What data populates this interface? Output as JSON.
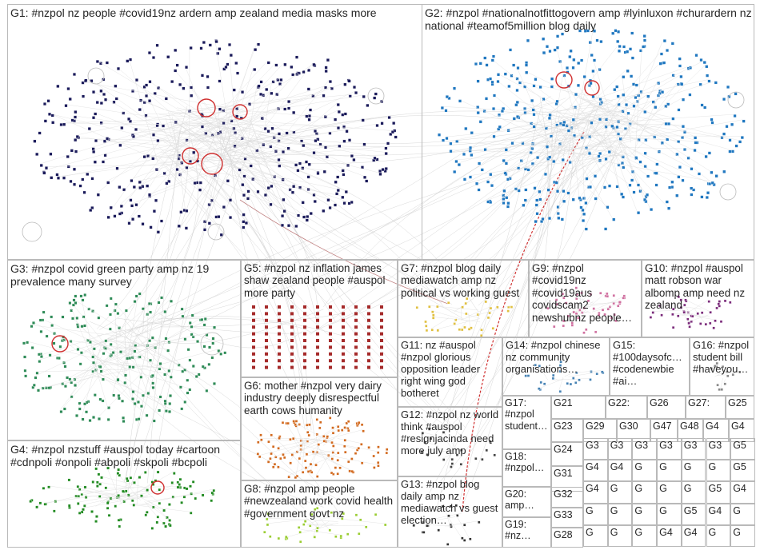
{
  "groups": [
    {
      "id": "G1",
      "label": "G1: #nzpol nz people #covid19nz ardern amp zealand media masks more",
      "color": "#1a1a5a"
    },
    {
      "id": "G2",
      "label": "G2: #nzpol #nationalnotfittogovern amp #lyinluxon #churardern nz national #teamof5million blog daily",
      "color": "#1f77c0"
    },
    {
      "id": "G3",
      "label": "G3: #nzpol covid green party amp nz 19 prevalence many survey",
      "color": "#2e8b57"
    },
    {
      "id": "G4",
      "label": "G4: #nzpol nzstuff #auspol today #cartoon #cdnpoli #onpoli #abpoli #skpoli #bcpoli",
      "color": "#228b22"
    },
    {
      "id": "G5",
      "label": "G5: #nzpol nz inflation james shaw zealand people #auspol more party",
      "color": "#a52a2a"
    },
    {
      "id": "G6",
      "label": "G6: mother #nzpol very dairy industry deeply disrespectful earth cows humanity",
      "color": "#d2691e"
    },
    {
      "id": "G7",
      "label": "G7: #nzpol blog daily mediawatch amp nz political vs working guest",
      "color": "#e0c040"
    },
    {
      "id": "G8",
      "label": "G8: #nzpol amp people #newzealand work covid health #government govt nz",
      "color": "#9acd32"
    },
    {
      "id": "G9",
      "label": "G9: #nzpol #covid19nz #covid19aus covidscam2 newshubnz people…",
      "color": "#d070a0"
    },
    {
      "id": "G10",
      "label": "G10: #nzpol #auspol matt robson war albomp amp need nz zealand",
      "color": "#7a2a7a"
    },
    {
      "id": "G11",
      "label": "G11: nz #auspol #nzpol glorious opposition leader right wing god botheret",
      "color": "#555555"
    },
    {
      "id": "G12",
      "label": "G12: #nzpol nz world think #auspol #resignjacinda need more july amp",
      "color": "#444444"
    },
    {
      "id": "G13",
      "label": "G13: #nzpol blog daily amp nz mediawatch vs guest election…",
      "color": "#333333"
    },
    {
      "id": "G14",
      "label": "G14: #nzpol chinese nz community organisations…",
      "color": "#4682b4"
    },
    {
      "id": "G15",
      "label": "G15: #100daysofc… #codenewbie #ai…",
      "color": "#3c8dbc"
    },
    {
      "id": "G16",
      "label": "G16: #nzpol student bill #haveyou…",
      "color": "#888888"
    },
    {
      "id": "G17",
      "label": "G17: #nzpol student…",
      "color": "#666666"
    },
    {
      "id": "G18",
      "label": "G18: #nzpol…",
      "color": "#666666"
    },
    {
      "id": "G19",
      "label": "G19: #nz…",
      "color": "#666666"
    },
    {
      "id": "G20",
      "label": "G20: amp…",
      "color": "#666666"
    },
    {
      "id": "G21",
      "label": "G21",
      "color": "#666666"
    },
    {
      "id": "G22",
      "label": "G22:",
      "color": "#666666"
    },
    {
      "id": "G23",
      "label": "G23",
      "color": "#666666"
    },
    {
      "id": "G24",
      "label": "G24",
      "color": "#666666"
    },
    {
      "id": "G25",
      "label": "G25",
      "color": "#666666"
    },
    {
      "id": "G26",
      "label": "G26",
      "color": "#666666"
    },
    {
      "id": "G27",
      "label": "G27:",
      "color": "#666666"
    },
    {
      "id": "G28",
      "label": "G28",
      "color": "#666666"
    },
    {
      "id": "G29",
      "label": "G29",
      "color": "#666666"
    },
    {
      "id": "G30",
      "label": "G30",
      "color": "#666666"
    },
    {
      "id": "G31",
      "label": "G31",
      "color": "#666666"
    },
    {
      "id": "G32",
      "label": "G32",
      "color": "#666666"
    },
    {
      "id": "G33",
      "label": "G33",
      "color": "#666666"
    },
    {
      "id": "G47",
      "label": "G47",
      "color": "#666666"
    },
    {
      "id": "G48",
      "label": "G48",
      "color": "#666666"
    },
    {
      "id": "Gx1",
      "label": "G4",
      "color": "#666666"
    },
    {
      "id": "Gx2",
      "label": "G4",
      "color": "#666666"
    },
    {
      "id": "Gx3",
      "label": "G3",
      "color": "#666666"
    },
    {
      "id": "Gx4",
      "label": "G3",
      "color": "#666666"
    },
    {
      "id": "Gx5",
      "label": "G3",
      "color": "#666666"
    },
    {
      "id": "Gx6",
      "label": "G3",
      "color": "#666666"
    },
    {
      "id": "Gx7",
      "label": "G3",
      "color": "#666666"
    },
    {
      "id": "Gx8",
      "label": "G3",
      "color": "#666666"
    },
    {
      "id": "Gx9",
      "label": "G5",
      "color": "#666666"
    },
    {
      "id": "Gx10",
      "label": "G4",
      "color": "#666666"
    },
    {
      "id": "Gx11",
      "label": "G4",
      "color": "#666666"
    },
    {
      "id": "Gx12",
      "label": "G",
      "color": "#666666"
    },
    {
      "id": "Gx13",
      "label": "G",
      "color": "#666666"
    },
    {
      "id": "Gx14",
      "label": "G",
      "color": "#666666"
    },
    {
      "id": "Gx15",
      "label": "G",
      "color": "#666666"
    },
    {
      "id": "Gx16",
      "label": "G5",
      "color": "#666666"
    },
    {
      "id": "Gx17",
      "label": "G4",
      "color": "#666666"
    },
    {
      "id": "Gx18",
      "label": "G",
      "color": "#666666"
    },
    {
      "id": "Gx19",
      "label": "G",
      "color": "#666666"
    },
    {
      "id": "Gx20",
      "label": "G",
      "color": "#666666"
    },
    {
      "id": "Gx21",
      "label": "G",
      "color": "#666666"
    },
    {
      "id": "Gx22",
      "label": "G5",
      "color": "#666666"
    },
    {
      "id": "Gx23",
      "label": "G4",
      "color": "#666666"
    },
    {
      "id": "Gx24",
      "label": "G",
      "color": "#666666"
    },
    {
      "id": "Gx25",
      "label": "G",
      "color": "#666666"
    },
    {
      "id": "Gx26",
      "label": "G",
      "color": "#666666"
    },
    {
      "id": "Gx27",
      "label": "G",
      "color": "#666666"
    },
    {
      "id": "Gx28",
      "label": "G5",
      "color": "#666666"
    },
    {
      "id": "Gx29",
      "label": "G4",
      "color": "#666666"
    },
    {
      "id": "Gx30",
      "label": "G",
      "color": "#666666"
    },
    {
      "id": "Gx31",
      "label": "G",
      "color": "#666666"
    },
    {
      "id": "Gx32",
      "label": "G",
      "color": "#666666"
    },
    {
      "id": "Gx33",
      "label": "G",
      "color": "#666666"
    },
    {
      "id": "Gx34",
      "label": "G4",
      "color": "#666666"
    },
    {
      "id": "Gx35",
      "label": "G4",
      "color": "#666666"
    },
    {
      "id": "Gx36",
      "label": "G",
      "color": "#666666"
    },
    {
      "id": "Gx37",
      "label": "G",
      "color": "#666666"
    },
    {
      "id": "Gx38",
      "label": "G",
      "color": "#666666"
    },
    {
      "id": "Gx39",
      "label": "G",
      "color": "#666666"
    }
  ],
  "edge_color": "#c8c8c8",
  "highlight_edge_color": "#d03030"
}
